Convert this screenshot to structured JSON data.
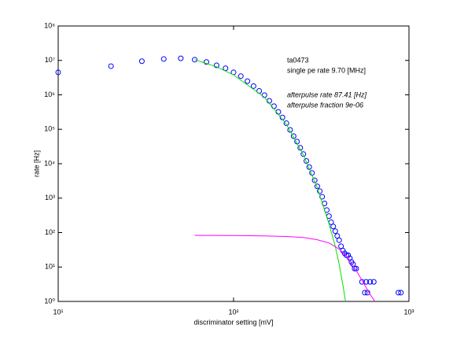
{
  "chart_data": {
    "type": "scatter",
    "xlabel": "discriminator setting [mV]",
    "ylabel": "rate [Hz]",
    "xscale": "log",
    "yscale": "log",
    "xlim": [
      10,
      1000
    ],
    "ylim": [
      1,
      100000000
    ],
    "xticks": [
      {
        "value": 10,
        "label": "10¹"
      },
      {
        "value": 100,
        "label": "10²"
      },
      {
        "value": 1000,
        "label": "10³"
      }
    ],
    "yticks": [
      {
        "value": 1,
        "label": "10⁰"
      },
      {
        "value": 10,
        "label": "10¹"
      },
      {
        "value": 100,
        "label": "10²"
      },
      {
        "value": 1000,
        "label": "10³"
      },
      {
        "value": 10000,
        "label": "10⁴"
      },
      {
        "value": 100000,
        "label": "10⁵"
      },
      {
        "value": 1000000,
        "label": "10⁶"
      },
      {
        "value": 10000000,
        "label": "10⁷"
      },
      {
        "value": 100000000,
        "label": "10⁸"
      }
    ],
    "annotations": [
      "ta0473",
      "single pe rate 9.70 [MHz]",
      "afterpulse rate 87.41 [Hz]",
      "afterpulse fraction 9e-06"
    ],
    "series": [
      {
        "kind": "scatter",
        "color": "#0000ff",
        "x": [
          10,
          20,
          30,
          40,
          50,
          60,
          70,
          80,
          90,
          100,
          110,
          120,
          130,
          140,
          150,
          160,
          170,
          180,
          190,
          200,
          210,
          220,
          230,
          240,
          250,
          260,
          270,
          280,
          290,
          300,
          310,
          320,
          330,
          340,
          350,
          360,
          370,
          380,
          390,
          400,
          410,
          420,
          430,
          440,
          450,
          460,
          470,
          480,
          490,
          500,
          540,
          560,
          570,
          580,
          600,
          630,
          870,
          900
        ],
        "values": [
          4500000,
          6800000,
          9500000,
          11000000,
          11500000,
          10500000,
          9000000,
          7200000,
          5900000,
          4500000,
          3500000,
          2500000,
          1800000,
          1300000,
          980000,
          670000,
          470000,
          320000,
          220000,
          150000,
          96000,
          63000,
          44000,
          29000,
          19000,
          12000,
          8000,
          5400,
          3300,
          2200,
          1600,
          1100,
          700,
          450,
          300,
          200,
          150,
          110,
          80,
          60,
          40,
          30,
          25,
          22,
          22,
          18,
          14,
          12,
          9,
          9,
          3.7,
          1.8,
          3.7,
          1.8,
          3.7,
          3.7,
          1.8,
          1.8
        ]
      },
      {
        "kind": "line",
        "color": "#00e000",
        "x": [
          60,
          80,
          100,
          150,
          200,
          250,
          300,
          350,
          380,
          400,
          420,
          435
        ],
        "values": [
          10500000,
          6500000,
          3800000,
          850000,
          140000,
          18000,
          2000,
          180,
          40,
          12,
          3,
          1
        ]
      },
      {
        "kind": "line",
        "color": "#ff00ff",
        "x": [
          60,
          100,
          150,
          200,
          250,
          300,
          350,
          400,
          450,
          500,
          550,
          600,
          640
        ],
        "values": [
          83,
          82,
          80,
          77,
          72,
          62,
          50,
          33,
          18,
          8,
          3.5,
          1.6,
          1
        ]
      }
    ]
  }
}
